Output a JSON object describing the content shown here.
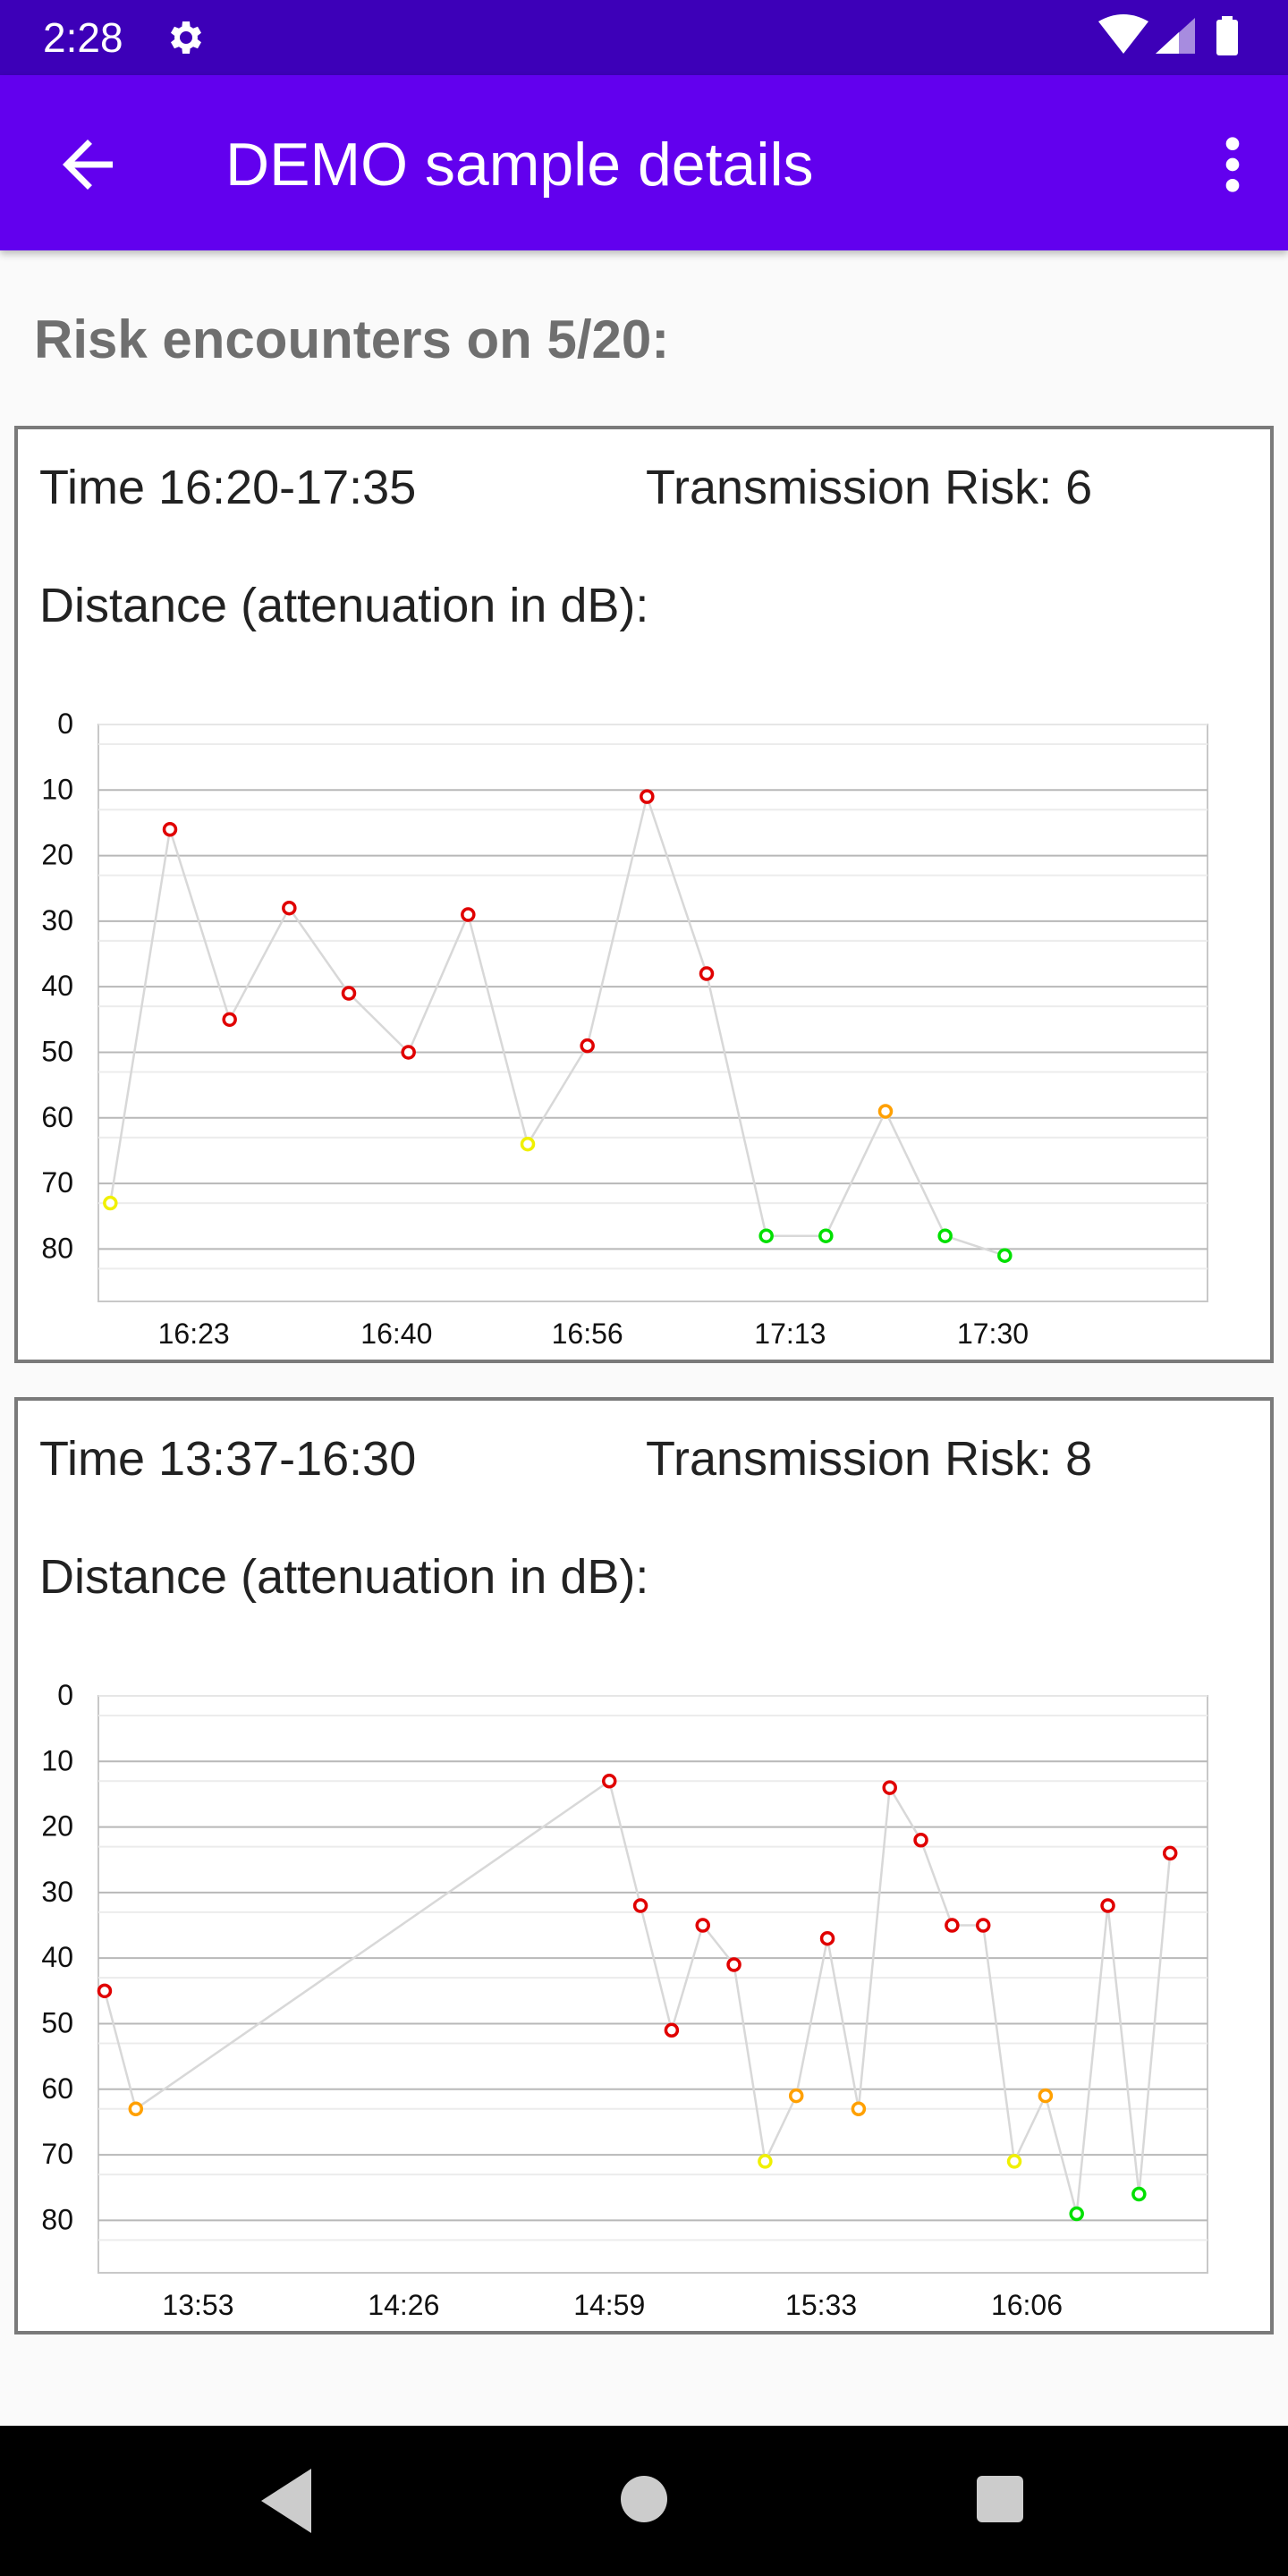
{
  "status_bar": {
    "time": "2:28",
    "icons": [
      "gear-icon",
      "wifi-icon",
      "signal-icon",
      "battery-icon"
    ]
  },
  "app_bar": {
    "title": "DEMO sample details",
    "back_icon": "arrow-back-icon",
    "menu_icon": "more-vert-icon"
  },
  "section_title": "Risk encounters on 5/20:",
  "colors": {
    "red": "#e00000",
    "orange": "#ffa000",
    "yellow": "#f0f000",
    "green": "#00e000",
    "line": "#d8d8d8",
    "appbar": "#6200ee",
    "statusbar": "#3d00b8"
  },
  "cards": [
    {
      "time": "Time 16:20-17:35",
      "risk": "Transmission Risk: 6",
      "distance_label": "Distance (attenuation in dB):"
    },
    {
      "time": "Time 13:37-16:30",
      "risk": "Transmission Risk: 8",
      "distance_label": "Distance (attenuation in dB):"
    }
  ],
  "chart_data": [
    {
      "type": "line",
      "title": "",
      "xlabel": "",
      "ylabel": "",
      "y_axis_inverted": true,
      "ylim": [
        0,
        88
      ],
      "y_ticks": [
        "0",
        "10",
        "20",
        "30",
        "40",
        "50",
        "60",
        "70",
        "80"
      ],
      "x_range_minutes": [
        "16:15",
        "17:48"
      ],
      "x_ticks": [
        "16:23",
        "16:40",
        "16:56",
        "17:13",
        "17:30"
      ],
      "grid": true,
      "points": [
        {
          "x": "16:16",
          "y": 73,
          "level": "yellow"
        },
        {
          "x": "16:21",
          "y": 16,
          "level": "red"
        },
        {
          "x": "16:26",
          "y": 45,
          "level": "red"
        },
        {
          "x": "16:31",
          "y": 28,
          "level": "red"
        },
        {
          "x": "16:36",
          "y": 41,
          "level": "red"
        },
        {
          "x": "16:41",
          "y": 50,
          "level": "red"
        },
        {
          "x": "16:46",
          "y": 29,
          "level": "red"
        },
        {
          "x": "16:51",
          "y": 64,
          "level": "yellow"
        },
        {
          "x": "16:56",
          "y": 49,
          "level": "red"
        },
        {
          "x": "17:01",
          "y": 11,
          "level": "red"
        },
        {
          "x": "17:06",
          "y": 38,
          "level": "red"
        },
        {
          "x": "17:11",
          "y": 78,
          "level": "green"
        },
        {
          "x": "17:16",
          "y": 78,
          "level": "green"
        },
        {
          "x": "17:21",
          "y": 59,
          "level": "orange"
        },
        {
          "x": "17:26",
          "y": 78,
          "level": "green"
        },
        {
          "x": "17:31",
          "y": 81,
          "level": "green"
        }
      ]
    },
    {
      "type": "line",
      "title": "",
      "xlabel": "",
      "ylabel": "",
      "y_axis_inverted": true,
      "ylim": [
        0,
        88
      ],
      "y_ticks": [
        "0",
        "10",
        "20",
        "30",
        "40",
        "50",
        "60",
        "70",
        "80"
      ],
      "x_range_minutes": [
        "13:37",
        "16:35"
      ],
      "x_ticks": [
        "13:53",
        "14:26",
        "14:59",
        "15:33",
        "16:06"
      ],
      "grid": true,
      "points": [
        {
          "x": "13:38",
          "y": 45,
          "level": "red"
        },
        {
          "x": "13:43",
          "y": 63,
          "level": "orange"
        },
        {
          "x": "14:59",
          "y": 13,
          "level": "red"
        },
        {
          "x": "15:04",
          "y": 32,
          "level": "red"
        },
        {
          "x": "15:09",
          "y": 51,
          "level": "red"
        },
        {
          "x": "15:14",
          "y": 35,
          "level": "red"
        },
        {
          "x": "15:19",
          "y": 41,
          "level": "red"
        },
        {
          "x": "15:24",
          "y": 71,
          "level": "yellow"
        },
        {
          "x": "15:29",
          "y": 61,
          "level": "orange"
        },
        {
          "x": "15:34",
          "y": 37,
          "level": "red"
        },
        {
          "x": "15:39",
          "y": 63,
          "level": "orange"
        },
        {
          "x": "15:44",
          "y": 14,
          "level": "red"
        },
        {
          "x": "15:49",
          "y": 22,
          "level": "red"
        },
        {
          "x": "15:54",
          "y": 35,
          "level": "red"
        },
        {
          "x": "15:59",
          "y": 35,
          "level": "red"
        },
        {
          "x": "16:04",
          "y": 71,
          "level": "yellow"
        },
        {
          "x": "16:09",
          "y": 61,
          "level": "orange"
        },
        {
          "x": "16:14",
          "y": 79,
          "level": "green"
        },
        {
          "x": "16:19",
          "y": 32,
          "level": "red"
        },
        {
          "x": "16:24",
          "y": 76,
          "level": "green"
        },
        {
          "x": "16:29",
          "y": 24,
          "level": "red"
        }
      ]
    }
  ],
  "nav_bar": {
    "icons": [
      "nav-back-icon",
      "nav-home-icon",
      "nav-recents-icon"
    ]
  }
}
